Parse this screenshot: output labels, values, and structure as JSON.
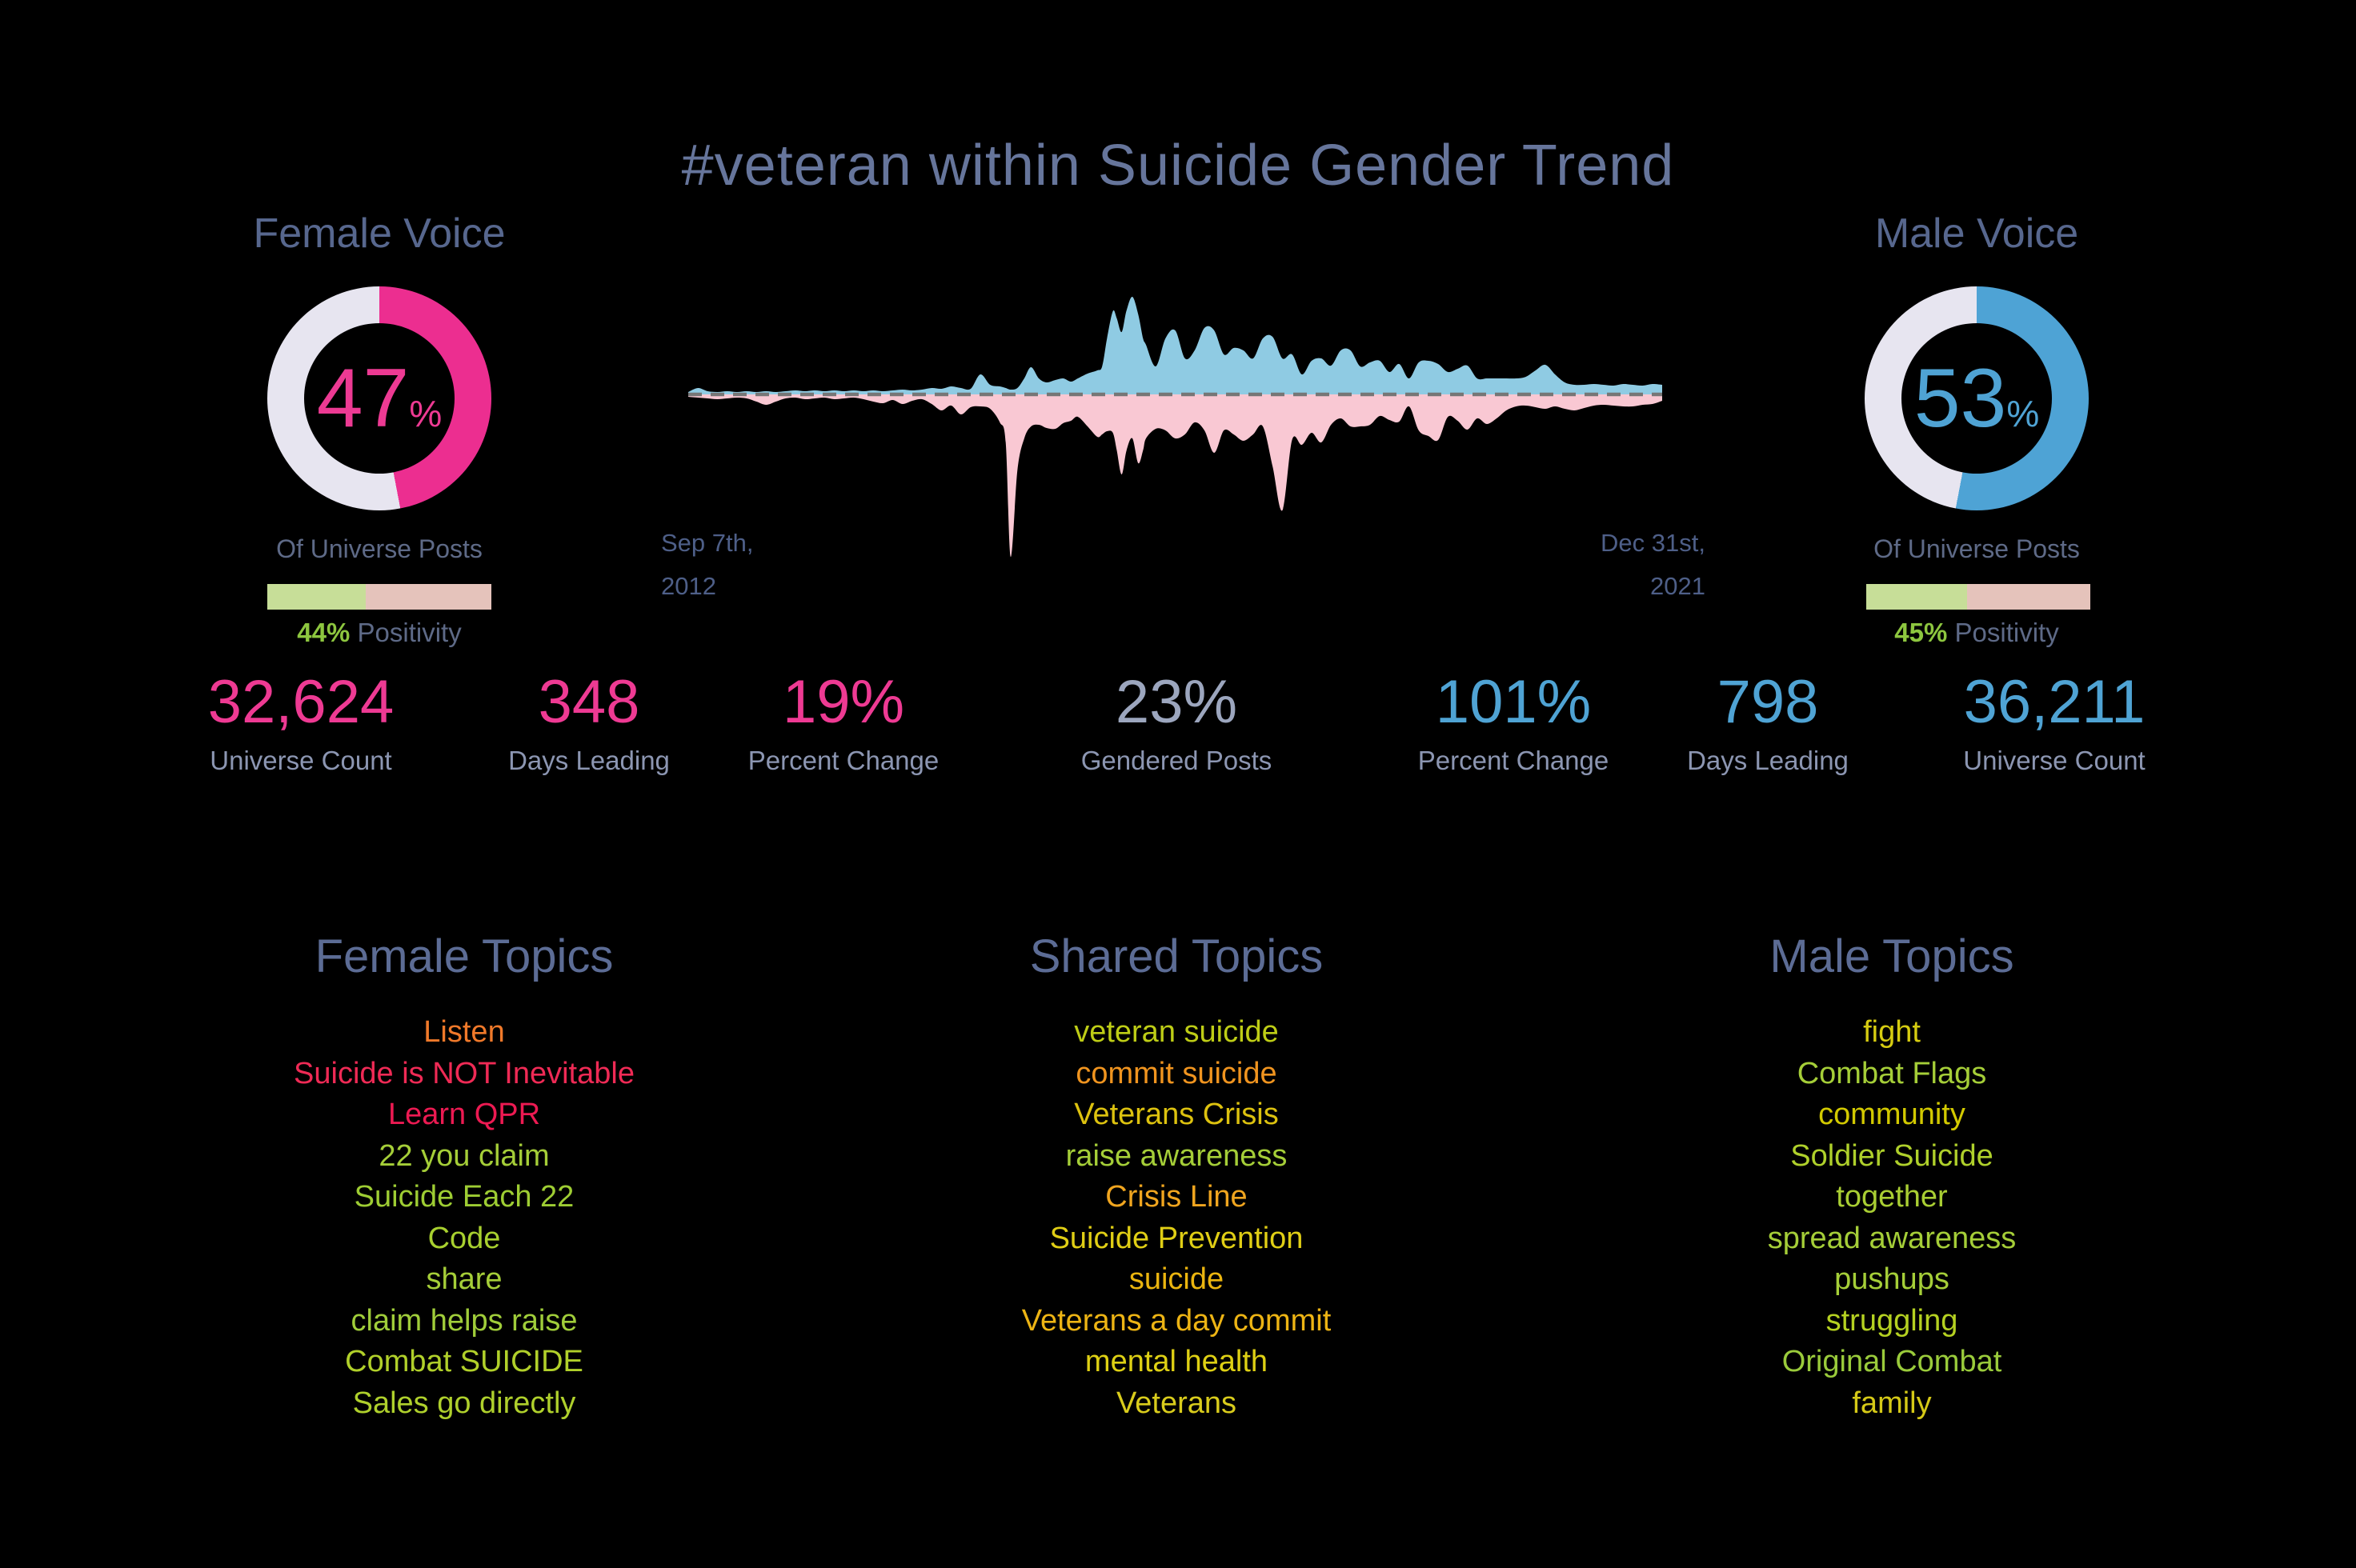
{
  "title": "#veteran within Suicide Gender Trend",
  "female": {
    "label": "Female Voice",
    "pct": "47",
    "pct_symbol": "%",
    "sub": "Of Universe Posts",
    "positivity_value": 44,
    "positivity_pct": "44%",
    "positivity_label": "Positivity"
  },
  "male": {
    "label": "Male Voice",
    "pct": "53",
    "pct_symbol": "%",
    "sub": "Of Universe Posts",
    "positivity_value": 45,
    "positivity_pct": "45%",
    "positivity_label": "Positivity"
  },
  "dates": {
    "start_line1": "Sep 7th,",
    "start_line2": "2012",
    "end_line1": "Dec 31st,",
    "end_line2": "2021"
  },
  "stats": [
    {
      "value": "32,624",
      "label": "Universe Count",
      "color": "#EE3A93"
    },
    {
      "value": "348",
      "label": "Days Leading",
      "color": "#EE3A93"
    },
    {
      "value": "19%",
      "label": "Percent Change",
      "color": "#EE3A93"
    },
    {
      "value": "23%",
      "label": "Gendered Posts",
      "color": "#9CA6BE"
    },
    {
      "value": "101%",
      "label": "Percent Change",
      "color": "#4FA3D4"
    },
    {
      "value": "798",
      "label": "Days Leading",
      "color": "#4FA3D4"
    },
    {
      "value": "36,211",
      "label": "Universe Count",
      "color": "#4FA3D4"
    }
  ],
  "topics": [
    {
      "header": "Female Topics",
      "items": [
        {
          "text": "Listen",
          "color": "#F0792A"
        },
        {
          "text": "Suicide is NOT Inevitable",
          "color": "#EF2A55"
        },
        {
          "text": "Learn QPR",
          "color": "#EC1A52"
        },
        {
          "text": "22 you claim",
          "color": "#A5CE38"
        },
        {
          "text": "Suicide Each 22",
          "color": "#9ECD33"
        },
        {
          "text": "Code",
          "color": "#A8D02F"
        },
        {
          "text": "share",
          "color": "#A5CE38"
        },
        {
          "text": "claim helps raise",
          "color": "#A0CD3A"
        },
        {
          "text": "Combat SUICIDE",
          "color": "#B1D02A"
        },
        {
          "text": "Sales go directly",
          "color": "#AFD02C"
        }
      ]
    },
    {
      "header": "Shared Topics",
      "items": [
        {
          "text": "veteran suicide",
          "color": "#BECD16"
        },
        {
          "text": "commit suicide",
          "color": "#F0941F"
        },
        {
          "text": "Veterans Crisis",
          "color": "#DDC20F"
        },
        {
          "text": "raise awareness",
          "color": "#A5CE38"
        },
        {
          "text": "Crisis Line",
          "color": "#F0A51F"
        },
        {
          "text": "Suicide Prevention",
          "color": "#E0CE15"
        },
        {
          "text": "suicide",
          "color": "#EBB50F"
        },
        {
          "text": "Veterans a day commit",
          "color": "#EDB414"
        },
        {
          "text": "mental health",
          "color": "#DED014"
        },
        {
          "text": "Veterans",
          "color": "#D9CC1C"
        }
      ]
    },
    {
      "header": "Male Topics",
      "items": [
        {
          "text": "fight",
          "color": "#D6CC11"
        },
        {
          "text": "Combat Flags",
          "color": "#A5CE38"
        },
        {
          "text": "community",
          "color": "#D2C900"
        },
        {
          "text": "Soldier Suicide",
          "color": "#AFD02B"
        },
        {
          "text": "together",
          "color": "#A9CE33"
        },
        {
          "text": "spread awareness",
          "color": "#A5CE38"
        },
        {
          "text": "pushups",
          "color": "#A5CE38"
        },
        {
          "text": "struggling",
          "color": "#B5D121"
        },
        {
          "text": "Original Combat",
          "color": "#9ACB3B"
        },
        {
          "text": "family",
          "color": "#D5C917"
        }
      ]
    }
  ],
  "chart_data": [
    {
      "type": "pie",
      "subtype": "donut",
      "title": "Female Voice",
      "value_pct": 47,
      "label": "Of Universe Posts",
      "positivity_pct": 44,
      "color": "#EC2E90",
      "track_color": "#E7E5F0"
    },
    {
      "type": "pie",
      "subtype": "donut",
      "title": "Male Voice",
      "value_pct": 53,
      "label": "Of Universe Posts",
      "positivity_pct": 45,
      "color": "#4EA3D5",
      "track_color": "#E7E5F0"
    },
    {
      "type": "area",
      "title": "Gender trend over time (mirrored area chart)",
      "x_start_label": "Sep 7th, 2012",
      "x_end_label": "Dec 31st, 2021",
      "geometry": {
        "x0": 860,
        "x1": 2077,
        "baseline_y": 493,
        "max_up": 122,
        "max_down": 207
      },
      "series": [
        {
          "name": "male",
          "color": "#8FCBE3",
          "orientation": "up"
        },
        {
          "name": "female",
          "color": "#F9C8D3",
          "orientation": "down"
        }
      ],
      "baseline_color": "#767676",
      "points_pct_male_female": [
        [
          0,
          3,
          3
        ],
        [
          1,
          8,
          4
        ],
        [
          2,
          4,
          5
        ],
        [
          3,
          3,
          6
        ],
        [
          4,
          4,
          5
        ],
        [
          5,
          3,
          4
        ],
        [
          6,
          4,
          5
        ],
        [
          7,
          3,
          9
        ],
        [
          8,
          4,
          13
        ],
        [
          9,
          3,
          9
        ],
        [
          10,
          4,
          5
        ],
        [
          11,
          5,
          4
        ],
        [
          12,
          4,
          6
        ],
        [
          13,
          5,
          5
        ],
        [
          14,
          4,
          4
        ],
        [
          15,
          5,
          6
        ],
        [
          16,
          4,
          5
        ],
        [
          17,
          5,
          4
        ],
        [
          18,
          4,
          6
        ],
        [
          19,
          5,
          9
        ],
        [
          20,
          4,
          11
        ],
        [
          21,
          5,
          7
        ],
        [
          22,
          6,
          12
        ],
        [
          23,
          5,
          8
        ],
        [
          24,
          6,
          6
        ],
        [
          25,
          8,
          12
        ],
        [
          26,
          7,
          20
        ],
        [
          27,
          10,
          14
        ],
        [
          28,
          8,
          25
        ],
        [
          29,
          7,
          16
        ],
        [
          30,
          25,
          15
        ],
        [
          31,
          12,
          18
        ],
        [
          32,
          10,
          35
        ],
        [
          32.6,
          8,
          60
        ],
        [
          33.1,
          6,
          203
        ],
        [
          33.8,
          8,
          95
        ],
        [
          34.5,
          20,
          55
        ],
        [
          35.2,
          34,
          40
        ],
        [
          36,
          20,
          38
        ],
        [
          36.8,
          15,
          42
        ],
        [
          37.7,
          18,
          43
        ],
        [
          38.5,
          20,
          36
        ],
        [
          39.3,
          16,
          33
        ],
        [
          40,
          20,
          28
        ],
        [
          41,
          26,
          40
        ],
        [
          42,
          30,
          53
        ],
        [
          42.5,
          35,
          50
        ],
        [
          43,
          70,
          46
        ],
        [
          43.6,
          104,
          48
        ],
        [
          44,
          95,
          70
        ],
        [
          44.5,
          78,
          100
        ],
        [
          45,
          105,
          70
        ],
        [
          45.6,
          122,
          55
        ],
        [
          46.2,
          100,
          86
        ],
        [
          46.7,
          70,
          70
        ],
        [
          47,
          62,
          55
        ],
        [
          48,
          35,
          43
        ],
        [
          49,
          70,
          45
        ],
        [
          50,
          80,
          55
        ],
        [
          51,
          45,
          50
        ],
        [
          52,
          55,
          35
        ],
        [
          53,
          83,
          45
        ],
        [
          54,
          80,
          73
        ],
        [
          55,
          50,
          45
        ],
        [
          56,
          58,
          50
        ],
        [
          57,
          55,
          58
        ],
        [
          58,
          45,
          50
        ],
        [
          59,
          70,
          40
        ],
        [
          60,
          72,
          90
        ],
        [
          61,
          45,
          145
        ],
        [
          62,
          50,
          57
        ],
        [
          63,
          25,
          63
        ],
        [
          64,
          42,
          48
        ],
        [
          65,
          45,
          60
        ],
        [
          66,
          36,
          38
        ],
        [
          67,
          55,
          30
        ],
        [
          68,
          55,
          40
        ],
        [
          69,
          35,
          40
        ],
        [
          70,
          40,
          38
        ],
        [
          71,
          42,
          27
        ],
        [
          72,
          28,
          32
        ],
        [
          73,
          38,
          34
        ],
        [
          74,
          20,
          15
        ],
        [
          75,
          40,
          45
        ],
        [
          76,
          42,
          52
        ],
        [
          77,
          38,
          57
        ],
        [
          78,
          28,
          28
        ],
        [
          79,
          32,
          33
        ],
        [
          80,
          36,
          44
        ],
        [
          81,
          20,
          30
        ],
        [
          82,
          20,
          37
        ],
        [
          83,
          20,
          30
        ],
        [
          84,
          20,
          20
        ],
        [
          85,
          20,
          15
        ],
        [
          86,
          22,
          14
        ],
        [
          87,
          30,
          16
        ],
        [
          88,
          37,
          18
        ],
        [
          89,
          25,
          15
        ],
        [
          90,
          15,
          18
        ],
        [
          91,
          12,
          20
        ],
        [
          92,
          12,
          17
        ],
        [
          93,
          13,
          14
        ],
        [
          94,
          12,
          13
        ],
        [
          95,
          11,
          14
        ],
        [
          96,
          13,
          15
        ],
        [
          97,
          12,
          15
        ],
        [
          98,
          11,
          13
        ],
        [
          99,
          13,
          12
        ],
        [
          100,
          12,
          8
        ]
      ]
    }
  ],
  "bar_colors": {
    "green": "#C7DE98",
    "tan": "#E5C3BB",
    "green_text": "#8DC63F"
  }
}
